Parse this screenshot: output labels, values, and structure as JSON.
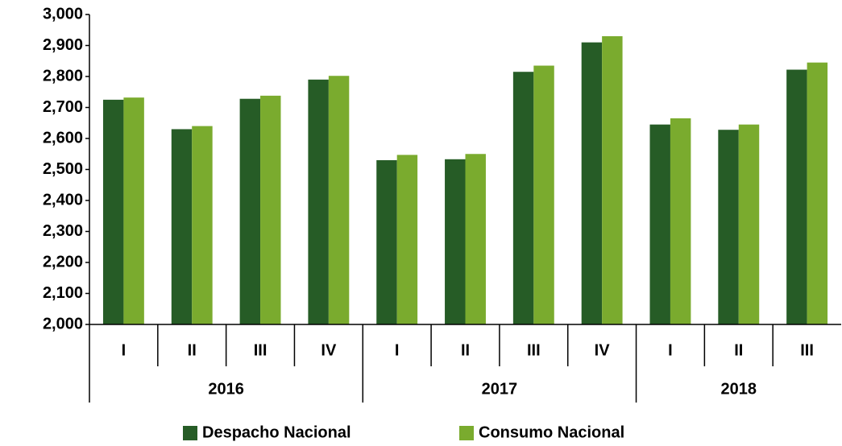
{
  "chart_data": {
    "type": "bar",
    "categories": [
      "I",
      "II",
      "III",
      "IV",
      "I",
      "II",
      "III",
      "IV",
      "I",
      "II",
      "III"
    ],
    "groups": [
      {
        "name": "2016",
        "count": 4
      },
      {
        "name": "2017",
        "count": 4
      },
      {
        "name": "2018",
        "count": 3
      }
    ],
    "series": [
      {
        "name": "Despacho Nacional",
        "color": "#265c26",
        "values": [
          2725,
          2630,
          2728,
          2790,
          2530,
          2533,
          2815,
          2910,
          2645,
          2628,
          2822
        ]
      },
      {
        "name": "Consumo Nacional",
        "color": "#7aab2e",
        "values": [
          2732,
          2640,
          2738,
          2802,
          2547,
          2550,
          2835,
          2930,
          2665,
          2645,
          2845
        ]
      }
    ],
    "ylim": [
      2000,
      3000
    ],
    "yticks": [
      {
        "value": 2000,
        "label": "2,000"
      },
      {
        "value": 2100,
        "label": "2,100"
      },
      {
        "value": 2200,
        "label": "2,200"
      },
      {
        "value": 2300,
        "label": "2,300"
      },
      {
        "value": 2400,
        "label": "2,400"
      },
      {
        "value": 2500,
        "label": "2,500"
      },
      {
        "value": 2600,
        "label": "2,600"
      },
      {
        "value": 2700,
        "label": "2,700"
      },
      {
        "value": 2800,
        "label": "2,800"
      },
      {
        "value": 2900,
        "label": "2,900"
      },
      {
        "value": 3000,
        "label": "3,000"
      }
    ],
    "legend": "bottom"
  }
}
